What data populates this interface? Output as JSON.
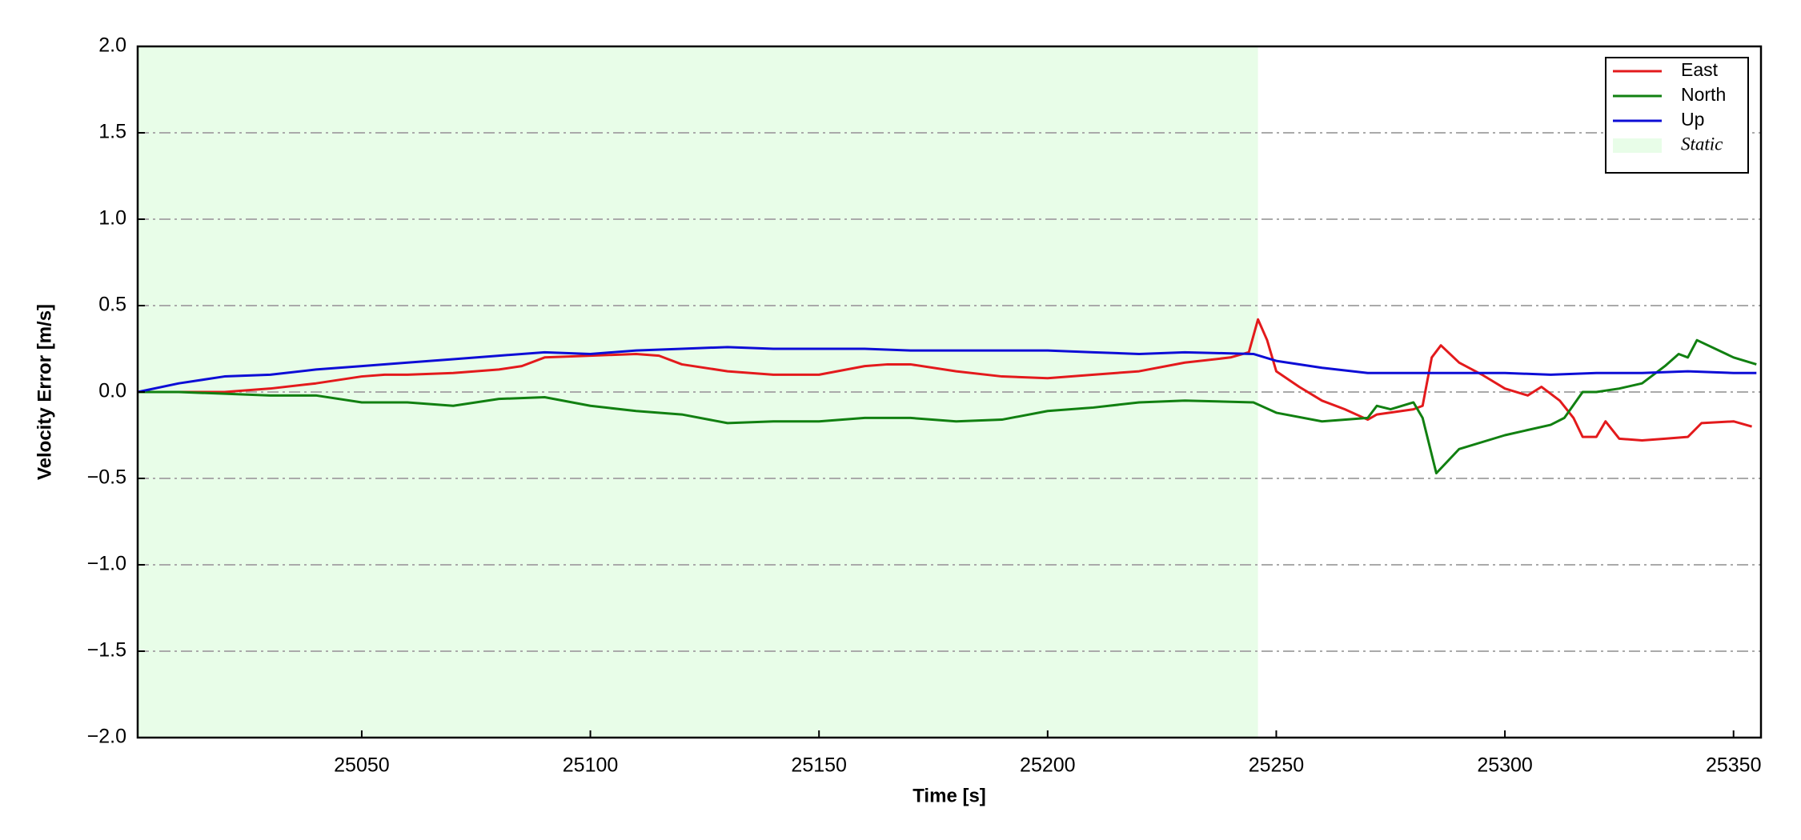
{
  "chart_data": {
    "type": "line",
    "xlabel": "Time [s]",
    "ylabel": "Velocity Error [m/s]",
    "xlim": [
      25001,
      25356
    ],
    "xticks": [
      25050,
      25100,
      25150,
      25200,
      25250,
      25300,
      25350
    ],
    "ylim": [
      -2,
      2
    ],
    "yticks": [
      {
        "value": -2,
        "label": "−2.0"
      },
      {
        "value": -1.5,
        "label": "−1.5"
      },
      {
        "value": -1,
        "label": "−1.0"
      },
      {
        "value": -0.5,
        "label": "−0.5"
      },
      {
        "value": 0,
        "label": "0.0"
      },
      0.5,
      {
        "value": 1,
        "label": "1.0"
      },
      1.5,
      {
        "value": 2,
        "label": "2.0"
      }
    ],
    "grid": true,
    "legend": "upper right",
    "spans": [
      {
        "name": "Static",
        "x": [
          25001,
          25246
        ],
        "color": "#e8fde8"
      }
    ],
    "series": [
      {
        "name": "East",
        "color": "#e31a1c",
        "x": [
          25001,
          25010,
          25020,
          25030,
          25040,
          25050,
          25055,
          25060,
          25070,
          25080,
          25085,
          25090,
          25100,
          25110,
          25115,
          25120,
          25130,
          25140,
          25150,
          25160,
          25165,
          25170,
          25180,
          25190,
          25200,
          25210,
          25220,
          25230,
          25240,
          25244,
          25246,
          25248,
          25250,
          25255,
          25260,
          25265,
          25270,
          25272,
          25280,
          25282,
          25284,
          25286,
          25290,
          25295,
          25300,
          25305,
          25308,
          25312,
          25315,
          25317,
          25320,
          25322,
          25325,
          25330,
          25335,
          25340,
          25343,
          25350,
          25354
        ],
        "values": [
          0,
          0,
          0,
          0.02,
          0.05,
          0.09,
          0.1,
          0.1,
          0.11,
          0.13,
          0.15,
          0.2,
          0.21,
          0.22,
          0.21,
          0.16,
          0.12,
          0.1,
          0.1,
          0.15,
          0.16,
          0.16,
          0.12,
          0.09,
          0.08,
          0.1,
          0.12,
          0.17,
          0.2,
          0.23,
          0.42,
          0.3,
          0.12,
          0.03,
          -0.05,
          -0.1,
          -0.16,
          -0.13,
          -0.1,
          -0.08,
          0.2,
          0.27,
          0.17,
          0.1,
          0.02,
          -0.02,
          0.03,
          -0.05,
          -0.15,
          -0.26,
          -0.26,
          -0.17,
          -0.27,
          -0.28,
          -0.27,
          -0.26,
          -0.18,
          -0.17,
          -0.2
        ]
      },
      {
        "name": "North",
        "color": "#118011",
        "x": [
          25001,
          25010,
          25020,
          25030,
          25040,
          25050,
          25060,
          25070,
          25080,
          25090,
          25100,
          25110,
          25120,
          25130,
          25140,
          25150,
          25160,
          25170,
          25180,
          25190,
          25200,
          25210,
          25220,
          25230,
          25245,
          25250,
          25260,
          25270,
          25272,
          25275,
          25280,
          25282,
          25285,
          25290,
          25300,
          25310,
          25313,
          25317,
          25320,
          25325,
          25330,
          25335,
          25338,
          25340,
          25342,
          25350,
          25355
        ],
        "values": [
          0,
          0,
          -0.01,
          -0.02,
          -0.02,
          -0.06,
          -0.06,
          -0.08,
          -0.04,
          -0.03,
          -0.08,
          -0.11,
          -0.13,
          -0.18,
          -0.17,
          -0.17,
          -0.15,
          -0.15,
          -0.17,
          -0.16,
          -0.11,
          -0.09,
          -0.06,
          -0.05,
          -0.06,
          -0.12,
          -0.17,
          -0.15,
          -0.08,
          -0.1,
          -0.06,
          -0.15,
          -0.47,
          -0.33,
          -0.25,
          -0.19,
          -0.15,
          0,
          0,
          0.02,
          0.05,
          0.15,
          0.22,
          0.2,
          0.3,
          0.2,
          0.16
        ]
      },
      {
        "name": "Up",
        "color": "#0d0dd6",
        "x": [
          25001,
          25010,
          25020,
          25030,
          25040,
          25050,
          25060,
          25070,
          25080,
          25090,
          25100,
          25110,
          25120,
          25130,
          25140,
          25150,
          25160,
          25170,
          25180,
          25190,
          25200,
          25210,
          25220,
          25230,
          25245,
          25250,
          25260,
          25270,
          25280,
          25290,
          25300,
          25310,
          25320,
          25330,
          25340,
          25350,
          25355
        ],
        "values": [
          0,
          0.05,
          0.09,
          0.1,
          0.13,
          0.15,
          0.17,
          0.19,
          0.21,
          0.23,
          0.22,
          0.24,
          0.25,
          0.26,
          0.25,
          0.25,
          0.25,
          0.24,
          0.24,
          0.24,
          0.24,
          0.23,
          0.22,
          0.23,
          0.22,
          0.18,
          0.14,
          0.11,
          0.11,
          0.11,
          0.11,
          0.1,
          0.11,
          0.11,
          0.12,
          0.11,
          0.11
        ]
      }
    ]
  }
}
